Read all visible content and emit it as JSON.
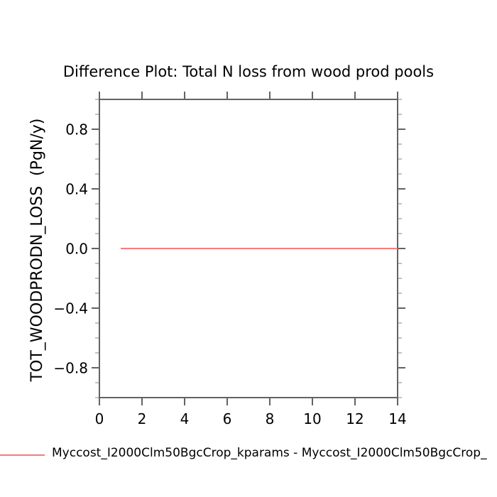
{
  "title": "Difference Plot: Total N loss from wood prod pools",
  "y_axis_label": "TOT_WOODPRODN_LOSS  (PgN/y)",
  "colors": {
    "background": "#ffffff",
    "axis": "#636363",
    "minor_tick": "#a8a8a8",
    "text": "#000000",
    "series_red": "#f87c7c"
  },
  "legend": {
    "entries": [
      {
        "label": "Myccost_I2000Clm50BgcCrop_kparams - Myccost_I2000Clm50BgcCrop_",
        "color": "#f87c7c",
        "swatch": "line"
      }
    ],
    "position": "below-plot-left",
    "clipped_at_right_edge": true
  },
  "chart_data": {
    "type": "line",
    "title": "Difference Plot: Total N loss from wood prod pools",
    "xlabel": "",
    "ylabel": "TOT_WOODPRODN_LOSS  (PgN/y)",
    "xlim": [
      0,
      14
    ],
    "ylim": [
      -1.0,
      1.0
    ],
    "x_major_ticks": [
      0,
      2,
      4,
      6,
      8,
      10,
      12,
      14
    ],
    "x_tick_labels": [
      "0",
      "2",
      "4",
      "6",
      "8",
      "10",
      "12",
      "14"
    ],
    "y_major_ticks": [
      -0.8,
      -0.4,
      0.0,
      0.4,
      0.8
    ],
    "y_tick_labels": [
      "−0.8",
      "−0.4",
      "0.0",
      "0.4",
      "0.8"
    ],
    "y_minor_tick_step": 0.1,
    "grid": false,
    "frame": "all-four-sides-with-mirrored-outward-ticks",
    "legend_position": "bottom-left",
    "series": [
      {
        "name": "Myccost_I2000Clm50BgcCrop_kparams - Myccost_I2000Clm50BgcCrop_",
        "color": "#f87c7c",
        "x": [
          1,
          14
        ],
        "y": [
          0.0,
          0.0
        ]
      }
    ]
  }
}
